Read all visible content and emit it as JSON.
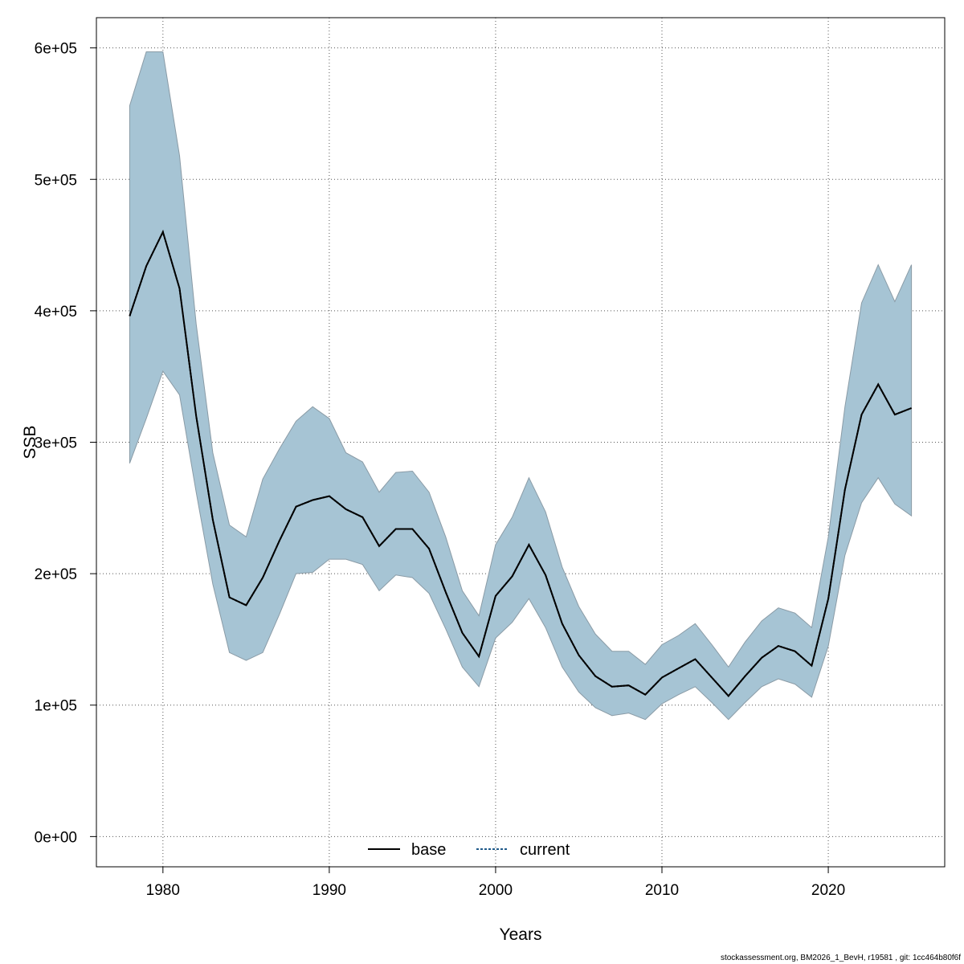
{
  "chart_data": {
    "type": "area",
    "xlabel": "Years",
    "ylabel": "SSB",
    "xlim": [
      1976,
      2027
    ],
    "ylim": [
      -23000,
      623000
    ],
    "x_ticks": [
      1980,
      1990,
      2000,
      2010,
      2020
    ],
    "x_tick_labels": [
      "1980",
      "1990",
      "2000",
      "2010",
      "2020"
    ],
    "y_ticks": [
      0,
      100000,
      200000,
      300000,
      400000,
      500000,
      600000
    ],
    "y_tick_labels": [
      "0e+00",
      "1e+05",
      "2e+05",
      "3e+05",
      "4e+05",
      "5e+05",
      "6e+05"
    ],
    "grid": true,
    "legend_position": "bottom-center",
    "band_color": "#a6c4d4",
    "band_edge_color": "#8a9ba6",
    "legend": [
      {
        "label": "base",
        "color": "#000000",
        "dash": "solid"
      },
      {
        "label": "current",
        "color": "#1f5a8a",
        "dash": "dotted"
      }
    ],
    "x": [
      1978,
      1979,
      1980,
      1981,
      1982,
      1983,
      1984,
      1985,
      1986,
      1987,
      1988,
      1989,
      1990,
      1991,
      1992,
      1993,
      1994,
      1995,
      1996,
      1997,
      1998,
      1999,
      2000,
      2001,
      2002,
      2003,
      2004,
      2005,
      2006,
      2007,
      2008,
      2009,
      2010,
      2011,
      2012,
      2013,
      2014,
      2015,
      2016,
      2017,
      2018,
      2019,
      2020,
      2021,
      2022,
      2023,
      2024,
      2025
    ],
    "band_upper": [
      556000,
      597000,
      597000,
      518000,
      390000,
      292000,
      237000,
      228000,
      272000,
      295000,
      316000,
      327000,
      318000,
      292000,
      285000,
      262000,
      277000,
      278000,
      262000,
      228000,
      187000,
      168000,
      222000,
      243000,
      273000,
      247000,
      205000,
      175000,
      154000,
      141000,
      141000,
      131000,
      146000,
      153000,
      162000,
      146000,
      129000,
      148000,
      164000,
      174000,
      170000,
      159000,
      228000,
      327000,
      406000,
      435000,
      407000,
      435000
    ],
    "band_lower": [
      284000,
      318000,
      354000,
      336000,
      262000,
      192000,
      140000,
      134000,
      140000,
      169000,
      200000,
      201000,
      211000,
      211000,
      207000,
      187000,
      199000,
      197000,
      185000,
      158000,
      129000,
      114000,
      151000,
      163000,
      181000,
      159000,
      129000,
      110000,
      98000,
      92000,
      94000,
      89000,
      101000,
      108000,
      114000,
      102000,
      89000,
      102000,
      114000,
      120000,
      116000,
      106000,
      145000,
      214000,
      254000,
      273000,
      253000,
      244000
    ],
    "series": [
      {
        "name": "base",
        "values": [
          396000,
          434000,
          460000,
          417000,
          320000,
          241000,
          182000,
          176000,
          197000,
          225000,
          251000,
          256000,
          259000,
          249000,
          243000,
          221000,
          234000,
          234000,
          219000,
          186000,
          155000,
          137000,
          183000,
          198000,
          222000,
          199000,
          162000,
          138000,
          122000,
          114000,
          115000,
          108000,
          121000,
          128000,
          135000,
          121000,
          107000,
          122000,
          136000,
          145000,
          141000,
          130000,
          181000,
          264000,
          321000,
          344000,
          321000,
          326000
        ]
      },
      {
        "name": "current",
        "values": [
          396000,
          434000,
          460000,
          417000,
          320000,
          241000,
          182000,
          176000,
          197000,
          225000,
          251000,
          256000,
          259000,
          249000,
          243000,
          221000,
          234000,
          234000,
          219000,
          186000,
          155000,
          137000,
          183000,
          198000,
          222000,
          199000,
          162000,
          138000,
          122000,
          114000,
          115000,
          108000,
          121000,
          128000,
          135000,
          121000,
          107000,
          122000,
          136000,
          145000,
          141000,
          130000,
          181000,
          264000,
          321000,
          344000,
          321000,
          326000
        ]
      }
    ]
  },
  "footer": {
    "note": "stockassessment.org, BM2026_1_BevH, r19581 , git: 1cc464b80f6f"
  }
}
